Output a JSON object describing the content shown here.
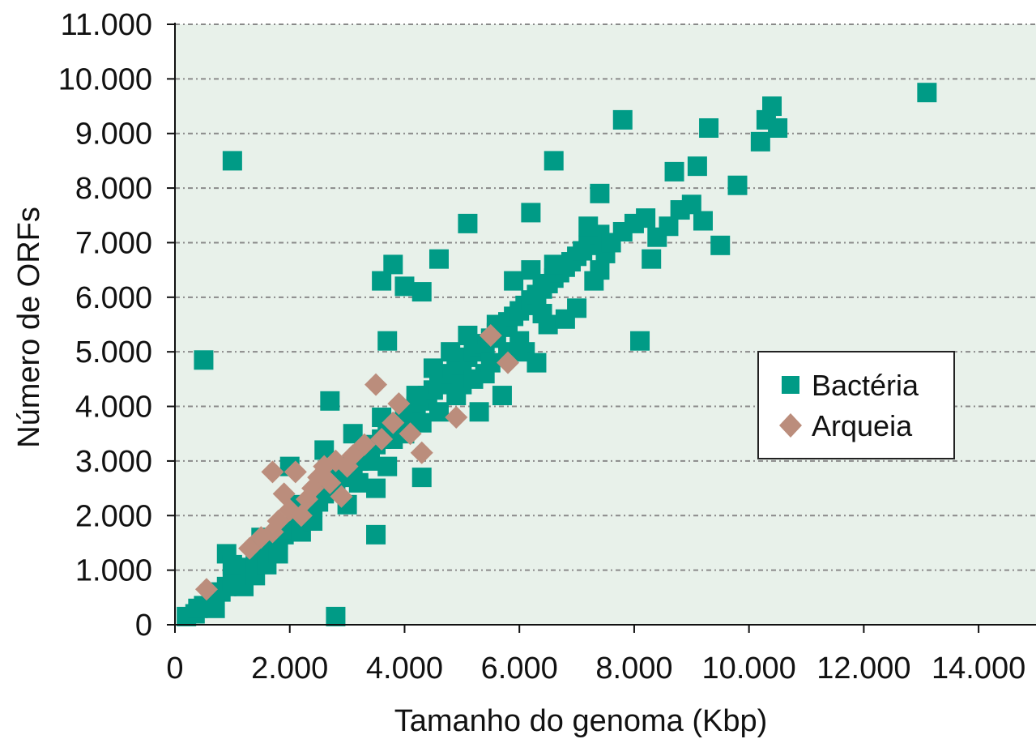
{
  "chart_data": {
    "type": "scatter",
    "xlabel": "Tamanho do genoma (Kbp)",
    "ylabel": "Número de ORFs",
    "xlim": [
      0,
      15000
    ],
    "ylim": [
      0,
      11000
    ],
    "x_ticks": [
      {
        "v": 0,
        "label": "0"
      },
      {
        "v": 2000,
        "label": "2.000"
      },
      {
        "v": 4000,
        "label": "4.000"
      },
      {
        "v": 6000,
        "label": "6.000"
      },
      {
        "v": 8000,
        "label": "8.000"
      },
      {
        "v": 10000,
        "label": "10.000"
      },
      {
        "v": 12000,
        "label": "12.000"
      },
      {
        "v": 14000,
        "label": "14.000"
      }
    ],
    "y_ticks": [
      {
        "v": 0,
        "label": "0"
      },
      {
        "v": 1000,
        "label": "1.000"
      },
      {
        "v": 2000,
        "label": "2.000"
      },
      {
        "v": 3000,
        "label": "3.000"
      },
      {
        "v": 4000,
        "label": "4.000"
      },
      {
        "v": 5000,
        "label": "5.000"
      },
      {
        "v": 6000,
        "label": "6.000"
      },
      {
        "v": 7000,
        "label": "7.000"
      },
      {
        "v": 8000,
        "label": "8.000"
      },
      {
        "v": 9000,
        "label": "9.000"
      },
      {
        "v": 10000,
        "label": "10.000"
      },
      {
        "v": 11000,
        "label": "11.000"
      }
    ],
    "grid": "horizontal dashed",
    "legend_position": "right",
    "background_color": "#e8f1ea",
    "series": [
      {
        "name": "Bactéria",
        "marker": "square",
        "color": "#009b86",
        "points": [
          [
            200,
            150
          ],
          [
            350,
            200
          ],
          [
            500,
            350
          ],
          [
            650,
            500
          ],
          [
            800,
            600
          ],
          [
            900,
            700
          ],
          [
            1000,
            800
          ],
          [
            1100,
            850
          ],
          [
            1200,
            950
          ],
          [
            1300,
            1050
          ],
          [
            1400,
            1150
          ],
          [
            1500,
            1250
          ],
          [
            1600,
            1300
          ],
          [
            1700,
            1450
          ],
          [
            1800,
            1550
          ],
          [
            1900,
            1650
          ],
          [
            2000,
            1750
          ],
          [
            2100,
            1850
          ],
          [
            2200,
            1950
          ],
          [
            2300,
            2050
          ],
          [
            2400,
            2150
          ],
          [
            2500,
            2250
          ],
          [
            2600,
            2400
          ],
          [
            2700,
            2500
          ],
          [
            2800,
            2600
          ],
          [
            2900,
            2700
          ],
          [
            3000,
            2800
          ],
          [
            3100,
            2900
          ],
          [
            3200,
            3000
          ],
          [
            3300,
            3100
          ],
          [
            3400,
            3200
          ],
          [
            3500,
            3300
          ],
          [
            3600,
            3400
          ],
          [
            3700,
            3500
          ],
          [
            3800,
            3600
          ],
          [
            3900,
            3700
          ],
          [
            4000,
            3800
          ],
          [
            4100,
            3900
          ],
          [
            4200,
            4000
          ],
          [
            4300,
            4100
          ],
          [
            4400,
            4200
          ],
          [
            4500,
            4300
          ],
          [
            4600,
            4400
          ],
          [
            4700,
            4500
          ],
          [
            4800,
            4600
          ],
          [
            4900,
            4700
          ],
          [
            5000,
            4800
          ],
          [
            5100,
            4900
          ],
          [
            5200,
            5000
          ],
          [
            5300,
            5100
          ],
          [
            5400,
            5150
          ],
          [
            5500,
            5250
          ],
          [
            5600,
            5350
          ],
          [
            5700,
            5450
          ],
          [
            5800,
            5550
          ],
          [
            5900,
            5650
          ],
          [
            6000,
            5750
          ],
          [
            6100,
            5850
          ],
          [
            6200,
            5950
          ],
          [
            6300,
            6050
          ],
          [
            6400,
            6150
          ],
          [
            6500,
            6250
          ],
          [
            6600,
            6350
          ],
          [
            6700,
            6450
          ],
          [
            6800,
            6550
          ],
          [
            6900,
            6650
          ],
          [
            7000,
            6750
          ],
          [
            7100,
            6850
          ],
          [
            7200,
            6950
          ],
          [
            7300,
            7050
          ],
          [
            7400,
            7150
          ],
          [
            7500,
            6800
          ],
          [
            7600,
            7000
          ],
          [
            7800,
            7200
          ],
          [
            8000,
            7350
          ],
          [
            8200,
            7450
          ],
          [
            8400,
            7100
          ],
          [
            8600,
            7300
          ],
          [
            8800,
            7600
          ],
          [
            9000,
            7700
          ],
          [
            9200,
            7400
          ],
          [
            8300,
            6700
          ],
          [
            9800,
            8050
          ],
          [
            10200,
            8850
          ],
          [
            10300,
            9250
          ],
          [
            10400,
            9500
          ],
          [
            10500,
            9100
          ],
          [
            900,
            1300
          ],
          [
            1000,
            1100
          ],
          [
            1200,
            700
          ],
          [
            1400,
            900
          ],
          [
            1600,
            1100
          ],
          [
            1500,
            1600
          ],
          [
            1800,
            1300
          ],
          [
            2000,
            2900
          ],
          [
            2100,
            2200
          ],
          [
            2200,
            1700
          ],
          [
            2400,
            1900
          ],
          [
            2600,
            3200
          ],
          [
            2800,
            2900
          ],
          [
            3000,
            2200
          ],
          [
            3100,
            3500
          ],
          [
            3200,
            2600
          ],
          [
            3400,
            3000
          ],
          [
            3500,
            2500
          ],
          [
            3600,
            3800
          ],
          [
            3700,
            2900
          ],
          [
            3800,
            3400
          ],
          [
            4000,
            3500
          ],
          [
            4200,
            4200
          ],
          [
            4300,
            3700
          ],
          [
            4500,
            4700
          ],
          [
            4600,
            3900
          ],
          [
            4800,
            5000
          ],
          [
            4900,
            4200
          ],
          [
            5000,
            4400
          ],
          [
            5100,
            5300
          ],
          [
            5200,
            4500
          ],
          [
            5300,
            3900
          ],
          [
            5400,
            4600
          ],
          [
            5500,
            4800
          ],
          [
            5600,
            5500
          ],
          [
            5700,
            4200
          ],
          [
            5800,
            5000
          ],
          [
            5900,
            6300
          ],
          [
            6000,
            5200
          ],
          [
            6100,
            5000
          ],
          [
            6200,
            6500
          ],
          [
            6300,
            4800
          ],
          [
            6400,
            5700
          ],
          [
            6500,
            5500
          ],
          [
            6600,
            6600
          ],
          [
            6800,
            5600
          ],
          [
            7000,
            5800
          ],
          [
            7200,
            7300
          ],
          [
            7300,
            6300
          ],
          [
            7400,
            6500
          ],
          [
            700,
            300
          ],
          [
            400,
            300
          ],
          [
            2700,
            4100
          ],
          [
            3800,
            6600
          ],
          [
            3700,
            5200
          ],
          [
            3600,
            6300
          ],
          [
            4000,
            6200
          ],
          [
            4300,
            6100
          ],
          [
            4600,
            6700
          ],
          [
            5100,
            7350
          ],
          [
            6200,
            7550
          ],
          [
            6600,
            8500
          ],
          [
            7400,
            7900
          ],
          [
            7800,
            9250
          ],
          [
            9300,
            9100
          ],
          [
            8700,
            8300
          ],
          [
            9100,
            8400
          ],
          [
            9500,
            6950
          ],
          [
            8100,
            5200
          ],
          [
            1000,
            8500
          ],
          [
            500,
            4850
          ],
          [
            3500,
            1650
          ],
          [
            4300,
            2700
          ],
          [
            2800,
            150
          ],
          [
            13100,
            9750
          ]
        ]
      },
      {
        "name": "Arqueia",
        "marker": "diamond",
        "color": "#bb8d7c",
        "points": [
          [
            550,
            650
          ],
          [
            1300,
            1400
          ],
          [
            1500,
            1600
          ],
          [
            1700,
            1700
          ],
          [
            1700,
            2800
          ],
          [
            1900,
            2400
          ],
          [
            2000,
            2100
          ],
          [
            2100,
            2800
          ],
          [
            2300,
            2300
          ],
          [
            2400,
            2500
          ],
          [
            2500,
            2700
          ],
          [
            2600,
            2900
          ],
          [
            2700,
            2600
          ],
          [
            2800,
            3000
          ],
          [
            2900,
            2350
          ],
          [
            3000,
            2900
          ],
          [
            3100,
            3100
          ],
          [
            3300,
            3300
          ],
          [
            3500,
            4400
          ],
          [
            3600,
            3400
          ],
          [
            3800,
            3700
          ],
          [
            3900,
            4050
          ],
          [
            4100,
            3500
          ],
          [
            4300,
            3150
          ],
          [
            4900,
            3800
          ],
          [
            5500,
            5300
          ],
          [
            5800,
            4800
          ],
          [
            1800,
            1900
          ],
          [
            2200,
            2000
          ]
        ]
      }
    ]
  }
}
